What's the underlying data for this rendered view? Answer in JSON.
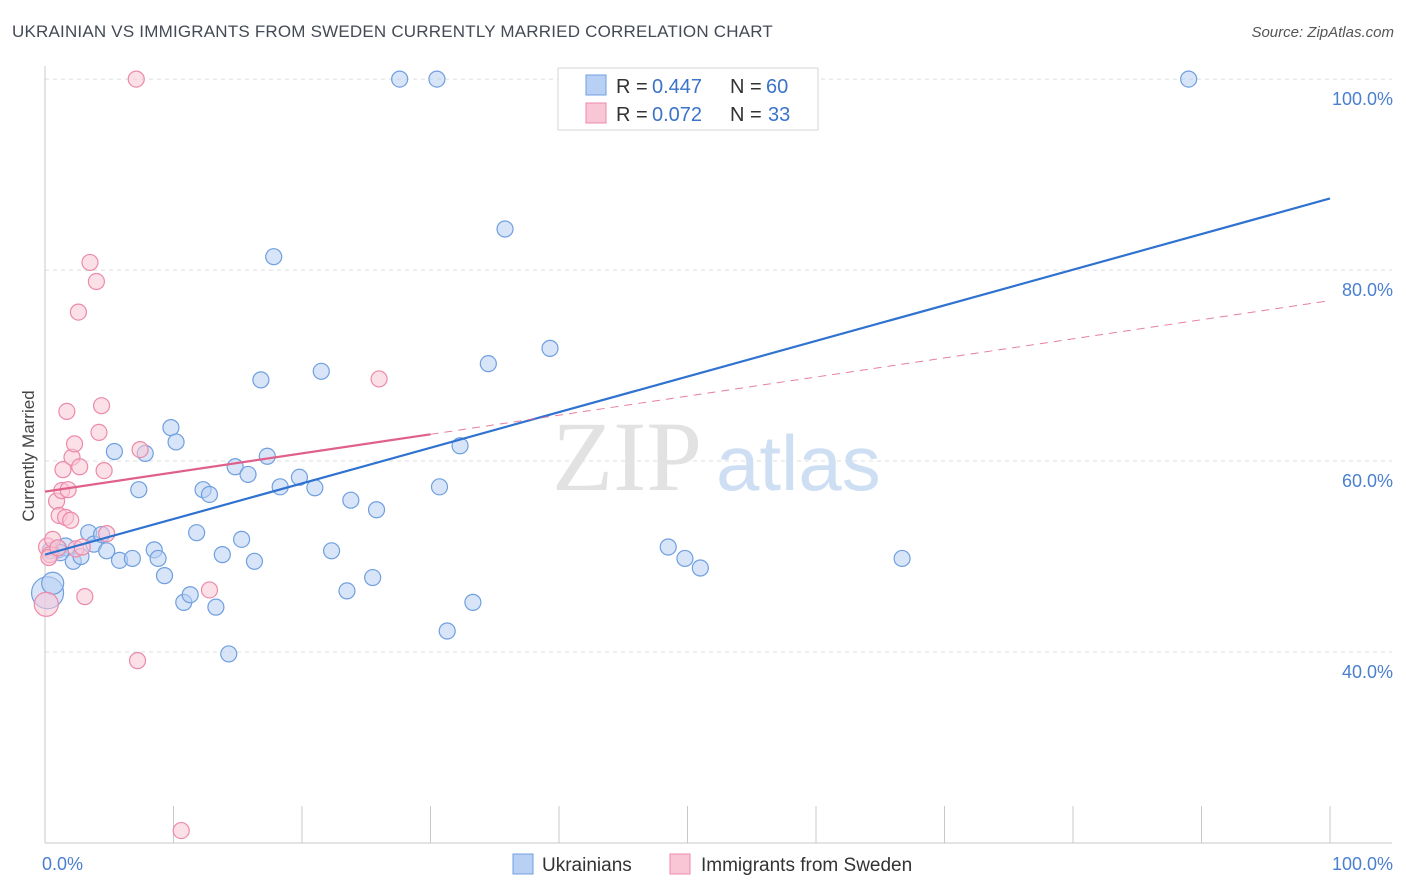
{
  "title": "UKRAINIAN VS IMMIGRANTS FROM SWEDEN CURRENTLY MARRIED CORRELATION CHART",
  "source": "Source: ZipAtlas.com",
  "watermark": {
    "zip": "ZIP",
    "atlas": "atlas"
  },
  "colors": {
    "blue_fill": "#b8d0f3",
    "blue_stroke": "#6f9fe0",
    "blue_line": "#2f72d0",
    "pink_fill": "#f9c6d6",
    "pink_stroke": "#ec8aa9",
    "pink_line": "#e0608c",
    "tick_blue": "#4a7fd0",
    "grid": "#dddddd"
  },
  "legend": {
    "r_label": "R = ",
    "n_label": "N = ",
    "items": [
      {
        "r": "0.447",
        "n": "60"
      },
      {
        "r": "0.072",
        "n": "33"
      }
    ]
  },
  "chart_data": {
    "type": "scatter",
    "xlabel": "",
    "ylabel": "Currently Married",
    "xlim": [
      0,
      100
    ],
    "ylim": [
      20,
      102
    ],
    "x_ticks": [
      0,
      10,
      20,
      30,
      40,
      50,
      60,
      70,
      80,
      90,
      100
    ],
    "x_tick_labels": [
      {
        "x": 0,
        "label": "0.0%"
      },
      {
        "x": 100,
        "label": "100.0%"
      }
    ],
    "y_ticks": [
      {
        "y": 40,
        "label": "40.0%"
      },
      {
        "y": 60,
        "label": "60.0%"
      },
      {
        "y": 80,
        "label": "80.0%"
      },
      {
        "y": 100,
        "label": "100.0%"
      }
    ],
    "grid": true,
    "legend_position": "top-center",
    "series": [
      {
        "name": "Ukrainians",
        "color": "#6f9fe0",
        "r": 0.447,
        "n": 60,
        "trend": {
          "x": [
            0,
            100
          ],
          "y": [
            50.2,
            87.5
          ],
          "style": "solid"
        },
        "points": [
          {
            "x": 0.2,
            "y": 46.2,
            "s": 16
          },
          {
            "x": 0.6,
            "y": 47.2,
            "s": 11
          },
          {
            "x": 1.0,
            "y": 50.8,
            "s": 9
          },
          {
            "x": 1.6,
            "y": 51.0,
            "s": 9
          },
          {
            "x": 2.2,
            "y": 49.5,
            "s": 8
          },
          {
            "x": 2.8,
            "y": 50.0,
            "s": 8
          },
          {
            "x": 3.4,
            "y": 52.5,
            "s": 8
          },
          {
            "x": 3.8,
            "y": 51.3,
            "s": 8
          },
          {
            "x": 4.4,
            "y": 52.3,
            "s": 8
          },
          {
            "x": 4.8,
            "y": 50.6,
            "s": 8
          },
          {
            "x": 5.4,
            "y": 61.0,
            "s": 8
          },
          {
            "x": 5.8,
            "y": 49.6,
            "s": 8
          },
          {
            "x": 6.8,
            "y": 49.8,
            "s": 8
          },
          {
            "x": 7.3,
            "y": 57.0,
            "s": 8
          },
          {
            "x": 7.8,
            "y": 60.8,
            "s": 8
          },
          {
            "x": 8.5,
            "y": 50.7,
            "s": 8
          },
          {
            "x": 8.8,
            "y": 49.8,
            "s": 8
          },
          {
            "x": 9.3,
            "y": 48.0,
            "s": 8
          },
          {
            "x": 9.8,
            "y": 63.5,
            "s": 8
          },
          {
            "x": 10.2,
            "y": 62.0,
            "s": 8
          },
          {
            "x": 10.8,
            "y": 45.2,
            "s": 8
          },
          {
            "x": 11.3,
            "y": 46.0,
            "s": 8
          },
          {
            "x": 11.8,
            "y": 52.5,
            "s": 8
          },
          {
            "x": 12.3,
            "y": 57.0,
            "s": 8
          },
          {
            "x": 12.8,
            "y": 56.5,
            "s": 8
          },
          {
            "x": 13.3,
            "y": 44.7,
            "s": 8
          },
          {
            "x": 13.8,
            "y": 50.2,
            "s": 8
          },
          {
            "x": 14.3,
            "y": 39.8,
            "s": 8
          },
          {
            "x": 14.8,
            "y": 59.4,
            "s": 8
          },
          {
            "x": 15.3,
            "y": 51.8,
            "s": 8
          },
          {
            "x": 15.8,
            "y": 58.6,
            "s": 8
          },
          {
            "x": 16.3,
            "y": 49.5,
            "s": 8
          },
          {
            "x": 16.8,
            "y": 68.5,
            "s": 8
          },
          {
            "x": 17.3,
            "y": 60.5,
            "s": 8
          },
          {
            "x": 17.8,
            "y": 81.4,
            "s": 8
          },
          {
            "x": 18.3,
            "y": 57.3,
            "s": 8
          },
          {
            "x": 19.8,
            "y": 58.3,
            "s": 8
          },
          {
            "x": 21.0,
            "y": 57.2,
            "s": 8
          },
          {
            "x": 21.5,
            "y": 69.4,
            "s": 8
          },
          {
            "x": 22.3,
            "y": 50.6,
            "s": 8
          },
          {
            "x": 23.5,
            "y": 46.4,
            "s": 8
          },
          {
            "x": 23.8,
            "y": 55.9,
            "s": 8
          },
          {
            "x": 25.5,
            "y": 47.8,
            "s": 8
          },
          {
            "x": 25.8,
            "y": 54.9,
            "s": 8
          },
          {
            "x": 27.6,
            "y": 100.0,
            "s": 8
          },
          {
            "x": 30.5,
            "y": 100.0,
            "s": 8
          },
          {
            "x": 30.7,
            "y": 57.3,
            "s": 8
          },
          {
            "x": 31.3,
            "y": 42.2,
            "s": 8
          },
          {
            "x": 32.3,
            "y": 61.6,
            "s": 8
          },
          {
            "x": 33.3,
            "y": 45.2,
            "s": 8
          },
          {
            "x": 34.5,
            "y": 70.2,
            "s": 8
          },
          {
            "x": 35.8,
            "y": 84.3,
            "s": 8
          },
          {
            "x": 39.3,
            "y": 71.8,
            "s": 8
          },
          {
            "x": 48.5,
            "y": 51.0,
            "s": 8
          },
          {
            "x": 49.8,
            "y": 49.8,
            "s": 8
          },
          {
            "x": 51.0,
            "y": 48.8,
            "s": 8
          },
          {
            "x": 66.7,
            "y": 49.8,
            "s": 8
          },
          {
            "x": 89.0,
            "y": 100.0,
            "s": 8
          },
          {
            "x": 1.2,
            "y": 50.4,
            "s": 8
          },
          {
            "x": 0.4,
            "y": 50.6,
            "s": 8
          }
        ]
      },
      {
        "name": "Immigrants from Sweden",
        "color": "#ec8aa9",
        "r": 0.072,
        "n": 33,
        "trend": {
          "x": [
            0,
            30
          ],
          "y": [
            56.8,
            62.8
          ],
          "style": "solid",
          "dash_extension": {
            "x": [
              30,
              100
            ],
            "y": [
              62.8,
              76.8
            ]
          }
        },
        "points": [
          {
            "x": 0.1,
            "y": 45.0,
            "s": 12
          },
          {
            "x": 0.2,
            "y": 51.0,
            "s": 9
          },
          {
            "x": 0.4,
            "y": 50.2,
            "s": 8
          },
          {
            "x": 0.6,
            "y": 51.8,
            "s": 8
          },
          {
            "x": 0.9,
            "y": 55.8,
            "s": 8
          },
          {
            "x": 1.1,
            "y": 54.3,
            "s": 8
          },
          {
            "x": 1.3,
            "y": 56.9,
            "s": 8
          },
          {
            "x": 1.4,
            "y": 59.1,
            "s": 8
          },
          {
            "x": 1.6,
            "y": 54.1,
            "s": 8
          },
          {
            "x": 1.7,
            "y": 65.2,
            "s": 8
          },
          {
            "x": 1.8,
            "y": 57.0,
            "s": 8
          },
          {
            "x": 2.0,
            "y": 53.8,
            "s": 8
          },
          {
            "x": 2.1,
            "y": 60.4,
            "s": 8
          },
          {
            "x": 2.3,
            "y": 61.8,
            "s": 8
          },
          {
            "x": 2.4,
            "y": 50.8,
            "s": 8
          },
          {
            "x": 2.6,
            "y": 75.6,
            "s": 8
          },
          {
            "x": 2.7,
            "y": 59.4,
            "s": 8
          },
          {
            "x": 2.9,
            "y": 51.0,
            "s": 8
          },
          {
            "x": 3.1,
            "y": 45.8,
            "s": 8
          },
          {
            "x": 3.5,
            "y": 80.8,
            "s": 8
          },
          {
            "x": 4.0,
            "y": 78.8,
            "s": 8
          },
          {
            "x": 4.2,
            "y": 63.0,
            "s": 8
          },
          {
            "x": 4.4,
            "y": 65.8,
            "s": 8
          },
          {
            "x": 4.6,
            "y": 59.0,
            "s": 8
          },
          {
            "x": 4.8,
            "y": 52.4,
            "s": 8
          },
          {
            "x": 7.1,
            "y": 100.0,
            "s": 8
          },
          {
            "x": 7.2,
            "y": 39.1,
            "s": 8
          },
          {
            "x": 7.4,
            "y": 61.2,
            "s": 8
          },
          {
            "x": 10.6,
            "y": 21.3,
            "s": 8
          },
          {
            "x": 12.8,
            "y": 46.5,
            "s": 8
          },
          {
            "x": 26.0,
            "y": 68.6,
            "s": 8
          },
          {
            "x": 0.3,
            "y": 49.9,
            "s": 8
          },
          {
            "x": 1.0,
            "y": 50.9,
            "s": 8
          }
        ]
      }
    ]
  }
}
